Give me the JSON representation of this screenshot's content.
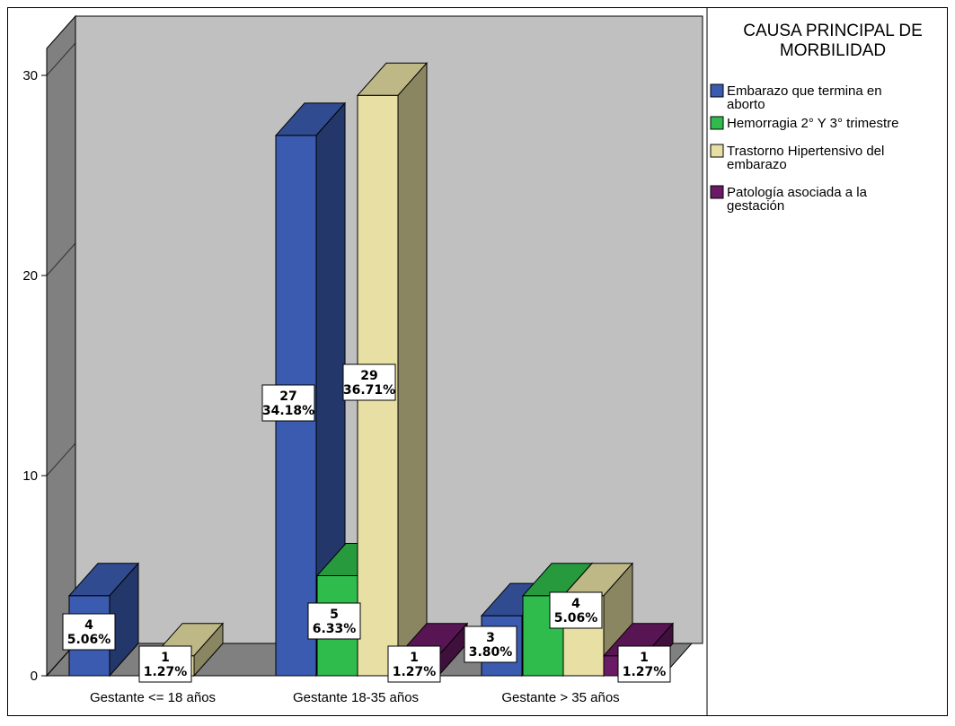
{
  "colors": {
    "background_outer": "#ffffff",
    "plot_wall": "#c0c0c0",
    "plot_left_wall": "#808080",
    "plot_floor": "#808080",
    "frame": "#000000"
  },
  "chart_data": {
    "type": "bar",
    "title": "",
    "xlabel": "",
    "ylabel": "",
    "ylim": [
      0,
      32
    ],
    "yticks": [
      "0",
      "10",
      "20",
      "30"
    ],
    "yticks_values": [
      0,
      10,
      20,
      30
    ],
    "grid": false,
    "legend_position": "right",
    "legend_title": [
      "CAUSA PRINCIPAL DE",
      "MORBILIDAD"
    ],
    "categories": [
      "Gestante <= 18 años",
      "Gestante 18-35 años",
      "Gestante > 35 años"
    ],
    "series": [
      {
        "name": [
          "Embarazo que termina en",
          "aborto"
        ],
        "color": "#3a5bb0",
        "values": [
          4,
          27,
          3
        ],
        "labels": [
          [
            "4",
            "5.06%"
          ],
          [
            "27",
            "34.18%"
          ],
          [
            "3",
            "3.80%"
          ]
        ]
      },
      {
        "name": [
          "Hemorragia 2° Y 3° trimestre"
        ],
        "color": "#2fbc4c",
        "values": [
          0,
          5,
          4
        ],
        "labels": [
          null,
          [
            "5",
            "6.33%"
          ],
          null
        ]
      },
      {
        "name": [
          "Trastorno Hipertensivo del",
          "embarazo"
        ],
        "color": "#e8dfa4",
        "values": [
          1,
          29,
          4
        ],
        "labels": [
          [
            "1",
            "1.27%"
          ],
          [
            "29",
            "36.71%"
          ],
          [
            "4",
            "5.06%"
          ]
        ]
      },
      {
        "name": [
          "Patología asociada a la",
          "gestación"
        ],
        "color": "#6b1a66",
        "values": [
          0,
          1,
          1
        ],
        "labels": [
          null,
          [
            "1",
            "1.27%"
          ],
          [
            "1",
            "1.27%"
          ]
        ]
      }
    ]
  }
}
